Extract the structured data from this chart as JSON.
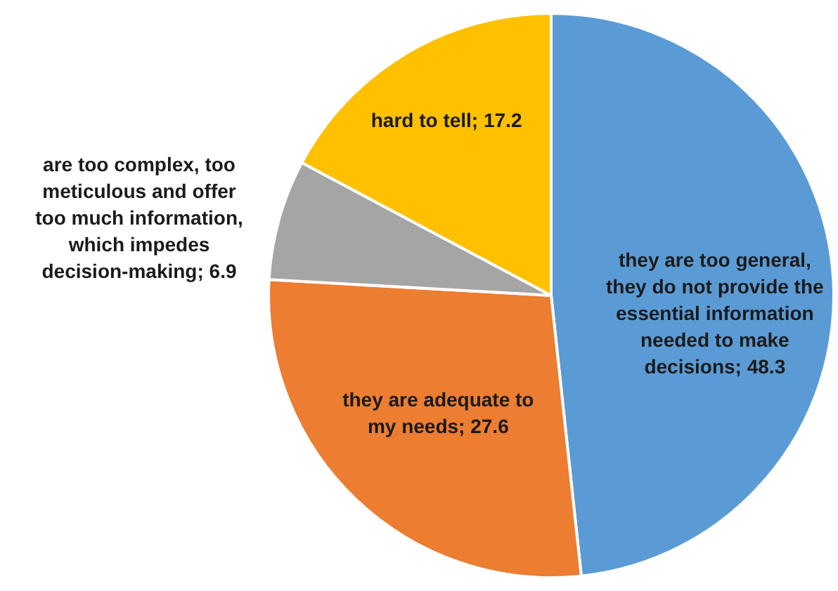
{
  "chart_data": {
    "type": "pie",
    "categories": [
      "they are too general, they do not provide the essential information needed to make decisions",
      "they are adequate to my needs",
      "are too complex, too meticulous and offer too much information, which impedes decision-making",
      "hard to tell"
    ],
    "values": [
      48.3,
      27.6,
      6.9,
      17.2
    ],
    "value_labels": [
      "; 48.3",
      "; 27.6",
      "; 6.9",
      "; 17.2"
    ],
    "colors": [
      "#5b9bd5",
      "#ed7d31",
      "#a5a5a5",
      "#ffc000"
    ],
    "legend": false
  }
}
